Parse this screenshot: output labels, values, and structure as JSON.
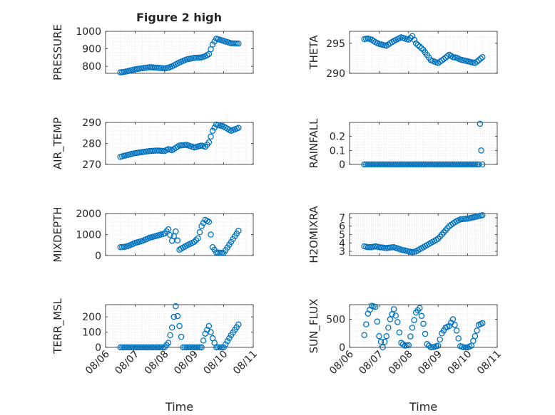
{
  "figure": {
    "title": "Figure 2 high",
    "marker_color": "#0072BD",
    "grid_color": "#d9d9d9"
  },
  "chart_data": [
    {
      "type": "scatter",
      "ylabel": "PRESSURE",
      "ylim": [
        760,
        1000
      ],
      "yticks": [
        800,
        900,
        1000
      ],
      "ytick_labels": [
        "800",
        "900",
        "1000"
      ],
      "xlim": [
        "08/06",
        "08/11"
      ],
      "xtick_labels": [
        "08/06",
        "08/07",
        "08/08",
        "08/09",
        "08/10",
        "08/11"
      ],
      "xlabel": "",
      "x": [
        "08/06 12:00",
        "08/06 15:00",
        "08/06 18:00",
        "08/06 21:00",
        "08/07 00:00",
        "08/07 06:00",
        "08/07 12:00",
        "08/07 18:00",
        "08/08 00:00",
        "08/08 03:00",
        "08/08 06:00",
        "08/08 12:00",
        "08/08 18:00",
        "08/09 00:00",
        "08/09 06:00",
        "08/09 09:00",
        "08/09 12:00",
        "08/09 15:00",
        "08/09 18:00",
        "08/10 00:00",
        "08/10 06:00",
        "08/10 12:00"
      ],
      "y": [
        765,
        768,
        772,
        778,
        783,
        789,
        795,
        792,
        788,
        792,
        800,
        822,
        840,
        848,
        851,
        858,
        870,
        925,
        958,
        945,
        932,
        930
      ]
    },
    {
      "type": "scatter",
      "ylabel": "THETA",
      "ylim": [
        290,
        297
      ],
      "yticks": [
        290,
        295
      ],
      "ytick_labels": [
        "290",
        "295"
      ],
      "xlim": [
        "08/06",
        "08/11"
      ],
      "xtick_labels": [
        "08/06",
        "08/07",
        "08/08",
        "08/09",
        "08/10",
        "08/11"
      ],
      "xlabel": "",
      "x": [
        "08/06 12:00",
        "08/06 15:00",
        "08/06 18:00",
        "08/06 21:00",
        "08/07 00:00",
        "08/07 06:00",
        "08/07 12:00",
        "08/07 18:00",
        "08/08 00:00",
        "08/08 03:00",
        "08/08 06:00",
        "08/08 12:00",
        "08/08 18:00",
        "08/09 00:00",
        "08/09 06:00",
        "08/09 09:00",
        "08/09 12:00",
        "08/09 15:00",
        "08/09 18:00",
        "08/10 00:00",
        "08/10 06:00",
        "08/10 12:00"
      ],
      "y": [
        295.7,
        295.8,
        295.6,
        295.2,
        294.9,
        294.6,
        295.4,
        296.0,
        295.6,
        296.2,
        295.0,
        293.9,
        292.2,
        291.7,
        292.6,
        293.1,
        292.7,
        292.6,
        292.3,
        292.0,
        291.7,
        292.7
      ]
    },
    {
      "type": "scatter",
      "ylabel": "AIR_TEMP",
      "ylim": [
        270,
        290
      ],
      "yticks": [
        270,
        280,
        290
      ],
      "ytick_labels": [
        "270",
        "280",
        "290"
      ],
      "xlim": [
        "08/06",
        "08/11"
      ],
      "xtick_labels": [
        "08/06",
        "08/07",
        "08/08",
        "08/09",
        "08/10",
        "08/11"
      ],
      "xlabel": "",
      "x": [
        "08/06 12:00",
        "08/06 15:00",
        "08/06 18:00",
        "08/06 21:00",
        "08/07 00:00",
        "08/07 06:00",
        "08/07 12:00",
        "08/07 18:00",
        "08/08 00:00",
        "08/08 03:00",
        "08/08 06:00",
        "08/08 12:00",
        "08/08 18:00",
        "08/09 00:00",
        "08/09 06:00",
        "08/09 09:00",
        "08/09 12:00",
        "08/09 15:00",
        "08/09 18:00",
        "08/10 00:00",
        "08/10 06:00",
        "08/10 12:00"
      ],
      "y": [
        273.6,
        274.1,
        274.5,
        275.0,
        275.4,
        275.9,
        276.4,
        276.6,
        276.4,
        277.3,
        276.8,
        279.0,
        279.3,
        278.1,
        279.0,
        278.4,
        280.5,
        286.0,
        289.0,
        288.0,
        286.0,
        287.4
      ]
    },
    {
      "type": "scatter",
      "ylabel": "RAINFALL",
      "ylim": [
        0,
        0.3
      ],
      "yticks": [
        0,
        0.1,
        0.2
      ],
      "ytick_labels": [
        "0",
        "0.1",
        "0.2"
      ],
      "xlim": [
        "08/06",
        "08/11"
      ],
      "xtick_labels": [
        "08/06",
        "08/07",
        "08/08",
        "08/09",
        "08/10",
        "08/11"
      ],
      "xlabel": "",
      "x": [
        "08/06 12:00",
        "08/06 18:00",
        "08/07 00:00",
        "08/07 06:00",
        "08/07 12:00",
        "08/07 18:00",
        "08/08 00:00",
        "08/08 06:00",
        "08/08 12:00",
        "08/08 18:00",
        "08/09 00:00",
        "08/09 06:00",
        "08/09 12:00",
        "08/09 18:00",
        "08/10 00:00",
        "08/10 06:00",
        "08/10 09:00",
        "08/10 10:00",
        "08/10 11:00",
        "08/10 12:00"
      ],
      "y": [
        0,
        0,
        0,
        0,
        0,
        0,
        0,
        0,
        0,
        0,
        0,
        0,
        0,
        0,
        0,
        0,
        0,
        0.29,
        0.1,
        0
      ]
    },
    {
      "type": "scatter",
      "ylabel": "MIXDEPTH",
      "ylim": [
        0,
        2000
      ],
      "yticks": [
        0,
        1000,
        2000
      ],
      "ytick_labels": [
        "0",
        "1000",
        "2000"
      ],
      "xlim": [
        "08/06",
        "08/11"
      ],
      "xtick_labels": [
        "08/06",
        "08/07",
        "08/08",
        "08/09",
        "08/10",
        "08/11"
      ],
      "xlabel": "",
      "x": [
        "08/06 12:00",
        "08/06 15:00",
        "08/06 18:00",
        "08/06 21:00",
        "08/07 00:00",
        "08/07 06:00",
        "08/07 12:00",
        "08/07 18:00",
        "08/08 00:00",
        "08/08 03:00",
        "08/08 06:00",
        "08/08 09:00",
        "08/08 12:00",
        "08/08 18:00",
        "08/09 00:00",
        "08/09 03:00",
        "08/09 06:00",
        "08/09 09:00",
        "08/09 12:00",
        "08/09 15:00",
        "08/09 18:00",
        "08/10 00:00",
        "08/10 06:00",
        "08/10 12:00"
      ],
      "y": [
        400,
        410,
        450,
        520,
        600,
        700,
        850,
        950,
        1050,
        1250,
        700,
        1150,
        280,
        480,
        650,
        820,
        1400,
        1700,
        1600,
        400,
        150,
        120,
        650,
        1180
      ]
    },
    {
      "type": "scatter",
      "ylabel": "H2OMIXRA",
      "ylim": [
        2.5,
        7.5
      ],
      "yticks": [
        3,
        4,
        5,
        6,
        7
      ],
      "ytick_labels": [
        "3",
        "4",
        "5",
        "6",
        "7"
      ],
      "xlim": [
        "08/06",
        "08/11"
      ],
      "xtick_labels": [
        "08/06",
        "08/07",
        "08/08",
        "08/09",
        "08/10",
        "08/11"
      ],
      "xlabel": "",
      "x": [
        "08/06 12:00",
        "08/06 15:00",
        "08/06 18:00",
        "08/06 21:00",
        "08/07 00:00",
        "08/07 06:00",
        "08/07 12:00",
        "08/07 18:00",
        "08/08 00:00",
        "08/08 03:00",
        "08/08 06:00",
        "08/08 12:00",
        "08/08 18:00",
        "08/09 00:00",
        "08/09 06:00",
        "08/09 09:00",
        "08/09 12:00",
        "08/09 15:00",
        "08/09 18:00",
        "08/10 00:00",
        "08/10 06:00",
        "08/10 12:00"
      ],
      "y": [
        3.6,
        3.5,
        3.5,
        3.6,
        3.5,
        3.4,
        3.5,
        3.2,
        3.0,
        2.9,
        3.0,
        3.5,
        4.0,
        4.5,
        5.5,
        6.0,
        6.3,
        6.6,
        6.8,
        6.9,
        7.1,
        7.3
      ]
    },
    {
      "type": "scatter",
      "ylabel": "TERR_MSL",
      "ylim": [
        0,
        280
      ],
      "yticks": [
        0,
        100,
        200
      ],
      "ytick_labels": [
        "0",
        "100",
        "200"
      ],
      "xlim": [
        "08/06",
        "08/11"
      ],
      "xtick_labels": [
        "08/06",
        "08/07",
        "08/08",
        "08/09",
        "08/10",
        "08/11"
      ],
      "xlabel": "Time",
      "x": [
        "08/06 12:00",
        "08/06 18:00",
        "08/07 00:00",
        "08/07 06:00",
        "08/07 12:00",
        "08/07 18:00",
        "08/08 00:00",
        "08/08 03:00",
        "08/08 06:00",
        "08/08 09:00",
        "08/08 12:00",
        "08/08 15:00",
        "08/08 18:00",
        "08/09 00:00",
        "08/09 06:00",
        "08/09 09:00",
        "08/09 12:00",
        "08/09 15:00",
        "08/09 18:00",
        "08/10 00:00",
        "08/10 06:00",
        "08/10 12:00"
      ],
      "y": [
        0,
        0,
        0,
        0,
        0,
        0,
        0,
        30,
        130,
        270,
        140,
        0,
        0,
        0,
        0,
        90,
        140,
        60,
        0,
        0,
        80,
        150
      ]
    },
    {
      "type": "scatter",
      "ylabel": "SUN_FLUX",
      "ylim": [
        0,
        760
      ],
      "yticks": [
        0,
        500
      ],
      "ytick_labels": [
        "0",
        "500"
      ],
      "xlim": [
        "08/06",
        "08/11"
      ],
      "xtick_labels": [
        "08/06",
        "08/07",
        "08/08",
        "08/09",
        "08/10",
        "08/11"
      ],
      "xlabel": "Time",
      "x": [
        "08/06 12:00",
        "08/06 15:00",
        "08/06 18:00",
        "08/06 21:00",
        "08/07 00:00",
        "08/07 03:00",
        "08/07 06:00",
        "08/07 09:00",
        "08/07 12:00",
        "08/07 15:00",
        "08/07 18:00",
        "08/07 21:00",
        "08/08 00:00",
        "08/08 03:00",
        "08/08 06:00",
        "08/08 09:00",
        "08/08 12:00",
        "08/08 15:00",
        "08/08 18:00",
        "08/08 21:00",
        "08/09 00:00",
        "08/09 03:00",
        "08/09 06:00",
        "08/09 09:00",
        "08/09 12:00",
        "08/09 15:00",
        "08/09 18:00",
        "08/09 21:00",
        "08/10 00:00",
        "08/10 03:00",
        "08/10 06:00",
        "08/10 09:00",
        "08/10 12:00"
      ],
      "y": [
        220,
        600,
        740,
        720,
        200,
        0,
        200,
        500,
        680,
        450,
        80,
        30,
        40,
        350,
        620,
        700,
        420,
        60,
        0,
        10,
        30,
        250,
        350,
        380,
        500,
        300,
        20,
        0,
        0,
        30,
        200,
        400,
        430
      ]
    }
  ]
}
